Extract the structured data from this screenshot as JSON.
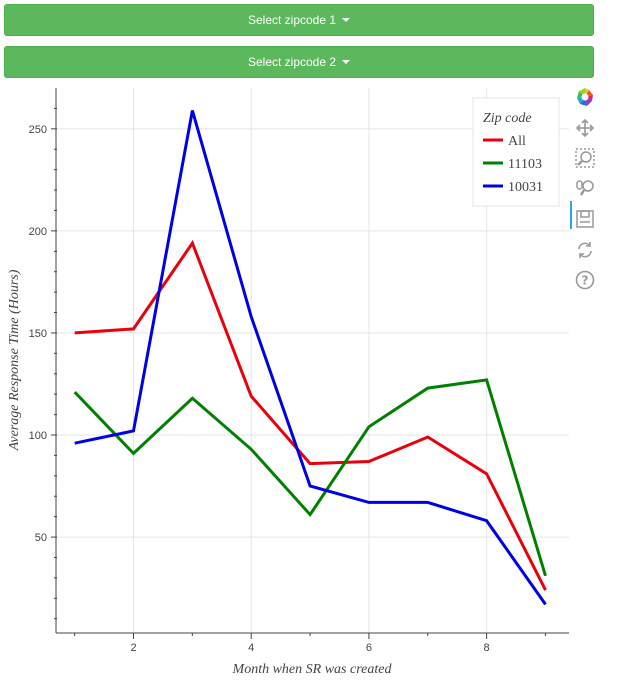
{
  "controls": {
    "dropdown1_label": "Select zipcode 1",
    "dropdown2_label": "Select zipcode 2"
  },
  "toolbar": {
    "tools": [
      "bokeh-logo",
      "pan-icon",
      "box-zoom-icon",
      "wheel-zoom-icon",
      "save-icon",
      "reset-icon",
      "help-icon"
    ]
  },
  "chart_data": {
    "type": "line",
    "title": "",
    "xlabel": "Month when SR was created",
    "ylabel": "Average Response Time (Hours)",
    "xlim": [
      0.7,
      9.4
    ],
    "ylim": [
      3,
      270
    ],
    "x_ticks": [
      2,
      4,
      6,
      8
    ],
    "y_ticks": [
      50,
      100,
      150,
      200,
      250
    ],
    "grid": true,
    "legend_title": "Zip code",
    "legend_position": "top-right",
    "x": [
      1,
      2,
      3,
      4,
      5,
      6,
      7,
      8,
      9
    ],
    "series": [
      {
        "name": "All",
        "color": "#e8000b",
        "values": [
          150,
          152,
          194,
          119,
          86,
          87,
          99,
          81,
          24
        ]
      },
      {
        "name": "11103",
        "color": "#008000",
        "values": [
          121,
          91,
          118,
          93,
          61,
          104,
          123,
          127,
          31
        ]
      },
      {
        "name": "10031",
        "color": "#0000e6",
        "values": [
          96,
          102,
          259,
          158,
          75,
          67,
          67,
          58,
          17
        ]
      }
    ]
  }
}
